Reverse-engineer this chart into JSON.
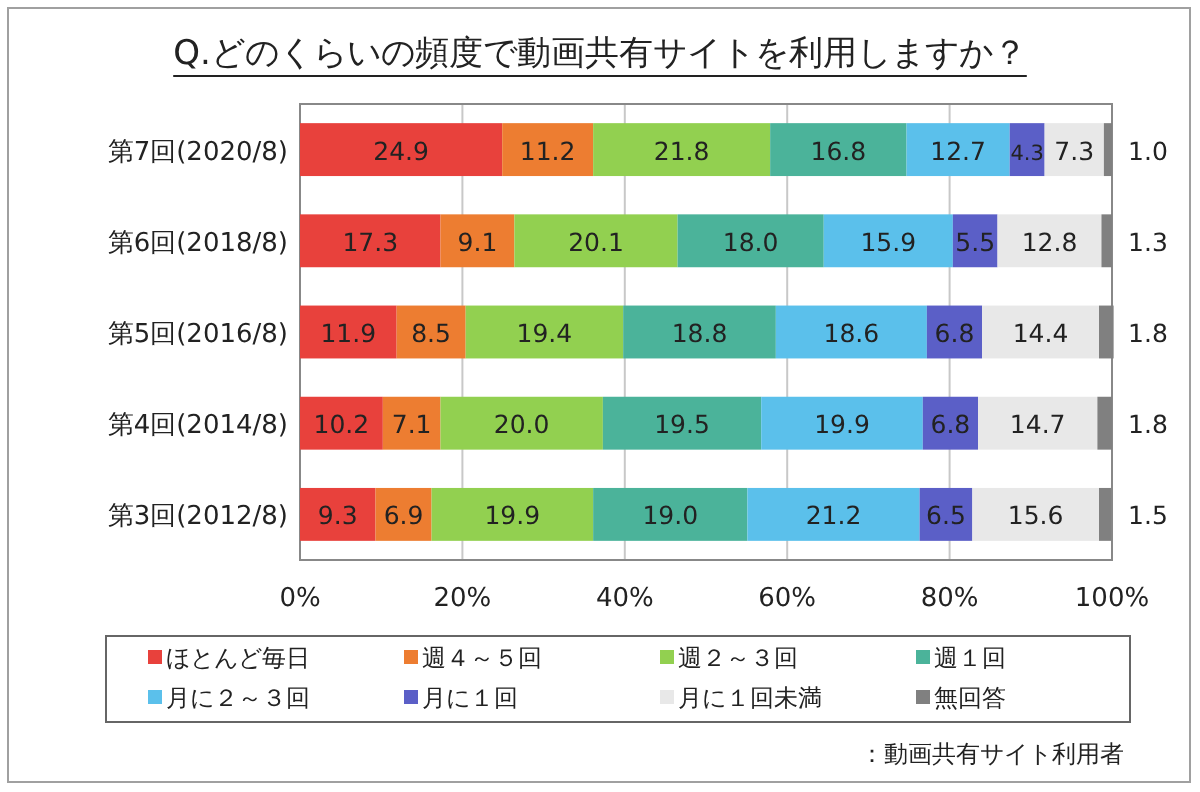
{
  "chart_data": {
    "type": "bar",
    "orientation": "horizontal",
    "stacked": true,
    "title": "Q.どのくらいの頻度で動画共有サイトを利用しますか？",
    "categories": [
      "第7回(2020/8)",
      "第6回(2018/8)",
      "第5回(2016/8)",
      "第4回(2014/8)",
      "第3回(2012/8)"
    ],
    "series": [
      {
        "name": "ほとんど毎日",
        "color": "#e8413c",
        "values": [
          24.9,
          17.3,
          11.9,
          10.2,
          9.3
        ],
        "value_labels": [
          "24.9",
          "17.3",
          "11.9",
          "10.2",
          "9.3"
        ]
      },
      {
        "name": "週４～５回",
        "color": "#ed7d31",
        "values": [
          11.2,
          9.1,
          8.5,
          7.1,
          6.9
        ],
        "value_labels": [
          "11.2",
          "9.1",
          "8.5",
          "7.1",
          "6.9"
        ]
      },
      {
        "name": "週２～３回",
        "color": "#92d050",
        "values": [
          21.8,
          20.1,
          19.4,
          20.0,
          19.9
        ],
        "value_labels": [
          "21.8",
          "20.1",
          "19.4",
          "20.0",
          "19.9"
        ]
      },
      {
        "name": "週１回",
        "color": "#4bb39a",
        "values": [
          16.8,
          18.0,
          18.8,
          19.5,
          19.0
        ],
        "value_labels": [
          "16.8",
          "18.0",
          "18.8",
          "19.5",
          "19.0"
        ]
      },
      {
        "name": "月に２～３回",
        "color": "#5bc0eb",
        "values": [
          12.7,
          15.9,
          18.6,
          19.9,
          21.2
        ],
        "value_labels": [
          "12.7",
          "15.9",
          "18.6",
          "19.9",
          "21.2"
        ]
      },
      {
        "name": "月に１回",
        "color": "#5b5fc7",
        "values": [
          4.3,
          5.5,
          6.8,
          6.8,
          6.5
        ],
        "value_labels": [
          "4.3",
          "5.5",
          "6.8",
          "6.8",
          "6.5"
        ]
      },
      {
        "name": "月に１回未満",
        "color": "#e8e8e8",
        "values": [
          7.3,
          12.8,
          14.4,
          14.7,
          15.6
        ],
        "value_labels": [
          "7.3",
          "12.8",
          "14.4",
          "14.7",
          "15.6"
        ]
      },
      {
        "name": "無回答",
        "color": "#808080",
        "values": [
          1.0,
          1.3,
          1.8,
          1.8,
          1.5
        ],
        "value_labels": [
          "1.0",
          "1.3",
          "1.8",
          "1.8",
          "1.5"
        ]
      }
    ],
    "xlim": [
      0,
      100
    ],
    "xticks": [
      {
        "value": 0,
        "label": "0%"
      },
      {
        "value": 20,
        "label": "20%"
      },
      {
        "value": 40,
        "label": "40%"
      },
      {
        "value": 60,
        "label": "60%"
      },
      {
        "value": 80,
        "label": "80%"
      },
      {
        "value": 100,
        "label": "100%"
      }
    ],
    "grid": "x",
    "legend": "bottom",
    "annotations": [
      "：動画共有サイト利用者"
    ]
  }
}
